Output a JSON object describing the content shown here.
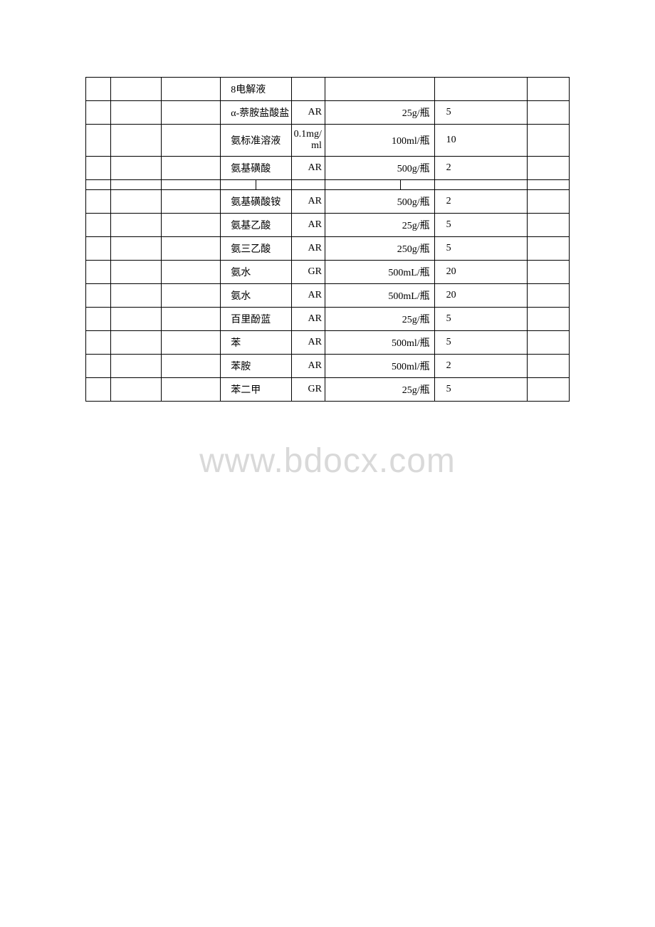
{
  "watermark": "www.bdocx.com",
  "table": {
    "colors": {
      "border": "#000000",
      "text": "#000000",
      "background": "#ffffff",
      "watermark": "#d9d9d9"
    },
    "font_size": 14,
    "rows": [
      {
        "c1": "",
        "c2": "",
        "c3": "",
        "name": "8电解液",
        "grade": "",
        "spec": "",
        "qty": "",
        "c10": ""
      },
      {
        "c1": "",
        "c2": "",
        "c3": "",
        "name": "α-萘胺盐酸盐",
        "grade": "AR",
        "spec": "25g/瓶",
        "qty": "5",
        "c10": ""
      },
      {
        "c1": "",
        "c2": "",
        "c3": "",
        "name": "氨标准溶液",
        "grade": "0.1mg/ml",
        "spec": "100ml/瓶",
        "qty": "10",
        "c10": ""
      },
      {
        "c1": "",
        "c2": "",
        "c3": "",
        "name": "氨基磺酸",
        "grade": "AR",
        "spec": "500g/瓶",
        "qty": "2",
        "c10": ""
      },
      {
        "blank": true
      },
      {
        "c1": "",
        "c2": "",
        "c3": "",
        "name": "氨基磺酸铵",
        "grade": "AR",
        "spec": "500g/瓶",
        "qty": "2",
        "c10": ""
      },
      {
        "c1": "",
        "c2": "",
        "c3": "",
        "name": "氨基乙酸",
        "grade": "AR",
        "spec": "25g/瓶",
        "qty": "5",
        "c10": ""
      },
      {
        "c1": "",
        "c2": "",
        "c3": "",
        "name": "氨三乙酸",
        "grade": "AR",
        "spec": "250g/瓶",
        "qty": "5",
        "c10": ""
      },
      {
        "c1": "",
        "c2": "",
        "c3": "",
        "name": "氨水",
        "grade": "GR",
        "spec": "500mL/瓶",
        "qty": "20",
        "c10": ""
      },
      {
        "c1": "",
        "c2": "",
        "c3": "",
        "name": "氨水",
        "grade": "AR",
        "spec": "500mL/瓶",
        "qty": "20",
        "c10": ""
      },
      {
        "c1": "",
        "c2": "",
        "c3": "",
        "name": "百里酚蓝",
        "grade": "AR",
        "spec": "25g/瓶",
        "qty": "5",
        "c10": ""
      },
      {
        "c1": "",
        "c2": "",
        "c3": "",
        "name": "苯",
        "grade": "AR",
        "spec": "500ml/瓶",
        "qty": "5",
        "c10": ""
      },
      {
        "c1": "",
        "c2": "",
        "c3": "",
        "name": "苯胺",
        "grade": "AR",
        "spec": "500ml/瓶",
        "qty": "2",
        "c10": ""
      },
      {
        "c1": "",
        "c2": "",
        "c3": "",
        "name": "苯二甲",
        "grade": "GR",
        "spec": "25g/瓶",
        "qty": "5",
        "c10": ""
      }
    ]
  }
}
